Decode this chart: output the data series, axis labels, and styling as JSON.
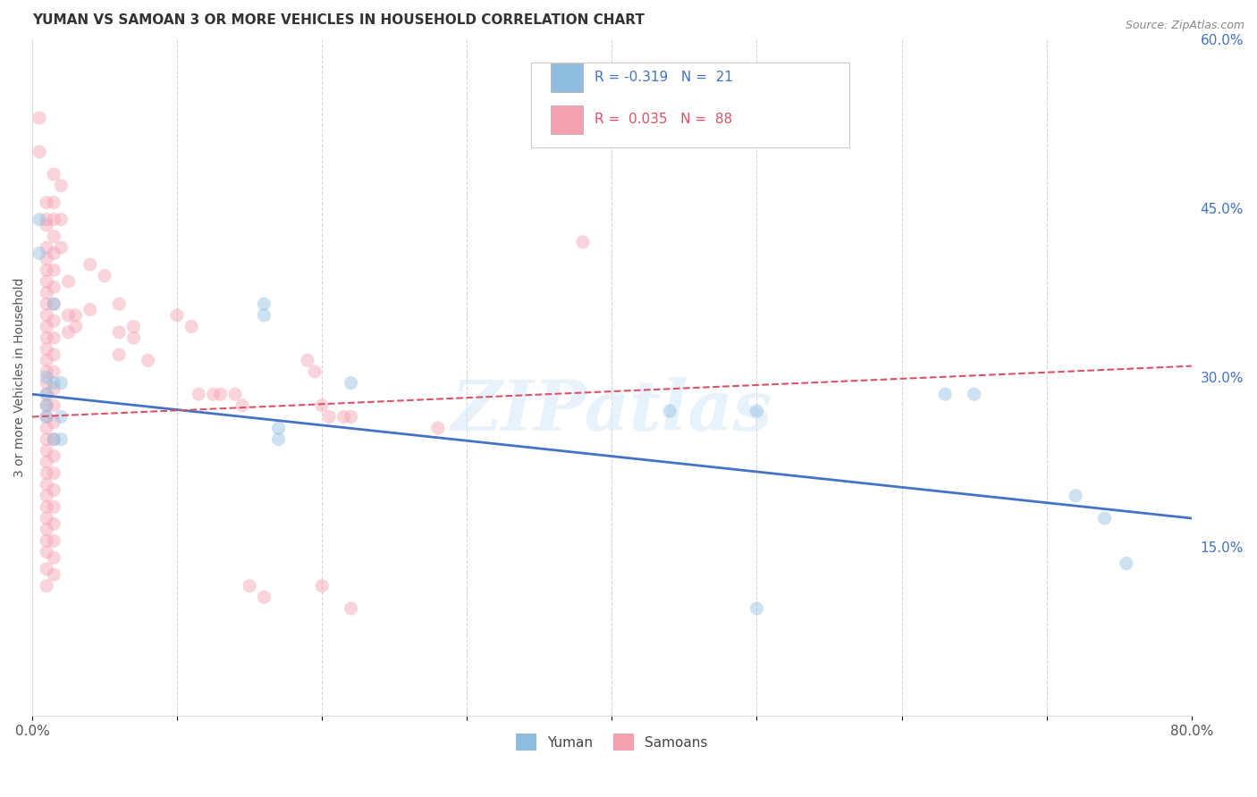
{
  "title": "YUMAN VS SAMOAN 3 OR MORE VEHICLES IN HOUSEHOLD CORRELATION CHART",
  "source": "Source: ZipAtlas.com",
  "ylabel": "3 or more Vehicles in Household",
  "xlim": [
    0.0,
    0.8
  ],
  "ylim": [
    0.0,
    0.6
  ],
  "xticks": [
    0.0,
    0.1,
    0.2,
    0.3,
    0.4,
    0.5,
    0.6,
    0.7,
    0.8
  ],
  "xticklabels": [
    "0.0%",
    "",
    "",
    "",
    "",
    "",
    "",
    "",
    "80.0%"
  ],
  "yticks_right": [
    0.15,
    0.3,
    0.45,
    0.6
  ],
  "ytick_right_labels": [
    "15.0%",
    "30.0%",
    "45.0%",
    "60.0%"
  ],
  "watermark": "ZIPatlas",
  "yuman_scatter": [
    [
      0.005,
      0.44
    ],
    [
      0.005,
      0.41
    ],
    [
      0.01,
      0.3
    ],
    [
      0.01,
      0.285
    ],
    [
      0.01,
      0.275
    ],
    [
      0.01,
      0.265
    ],
    [
      0.015,
      0.365
    ],
    [
      0.015,
      0.295
    ],
    [
      0.015,
      0.245
    ],
    [
      0.02,
      0.295
    ],
    [
      0.02,
      0.265
    ],
    [
      0.02,
      0.245
    ],
    [
      0.16,
      0.365
    ],
    [
      0.16,
      0.355
    ],
    [
      0.17,
      0.255
    ],
    [
      0.17,
      0.245
    ],
    [
      0.22,
      0.295
    ],
    [
      0.44,
      0.27
    ],
    [
      0.5,
      0.27
    ],
    [
      0.63,
      0.285
    ],
    [
      0.65,
      0.285
    ],
    [
      0.72,
      0.195
    ],
    [
      0.74,
      0.175
    ],
    [
      0.755,
      0.135
    ],
    [
      0.5,
      0.095
    ]
  ],
  "samoan_scatter": [
    [
      0.005,
      0.53
    ],
    [
      0.005,
      0.5
    ],
    [
      0.01,
      0.455
    ],
    [
      0.01,
      0.44
    ],
    [
      0.01,
      0.435
    ],
    [
      0.01,
      0.415
    ],
    [
      0.01,
      0.405
    ],
    [
      0.01,
      0.395
    ],
    [
      0.01,
      0.385
    ],
    [
      0.01,
      0.375
    ],
    [
      0.01,
      0.365
    ],
    [
      0.01,
      0.355
    ],
    [
      0.01,
      0.345
    ],
    [
      0.01,
      0.335
    ],
    [
      0.01,
      0.325
    ],
    [
      0.01,
      0.315
    ],
    [
      0.01,
      0.305
    ],
    [
      0.01,
      0.295
    ],
    [
      0.01,
      0.285
    ],
    [
      0.01,
      0.275
    ],
    [
      0.01,
      0.265
    ],
    [
      0.01,
      0.255
    ],
    [
      0.01,
      0.245
    ],
    [
      0.01,
      0.235
    ],
    [
      0.01,
      0.225
    ],
    [
      0.01,
      0.215
    ],
    [
      0.01,
      0.205
    ],
    [
      0.01,
      0.195
    ],
    [
      0.01,
      0.185
    ],
    [
      0.01,
      0.175
    ],
    [
      0.01,
      0.165
    ],
    [
      0.01,
      0.155
    ],
    [
      0.01,
      0.145
    ],
    [
      0.01,
      0.13
    ],
    [
      0.01,
      0.115
    ],
    [
      0.015,
      0.48
    ],
    [
      0.015,
      0.455
    ],
    [
      0.015,
      0.44
    ],
    [
      0.015,
      0.425
    ],
    [
      0.015,
      0.41
    ],
    [
      0.015,
      0.395
    ],
    [
      0.015,
      0.38
    ],
    [
      0.015,
      0.365
    ],
    [
      0.015,
      0.35
    ],
    [
      0.015,
      0.335
    ],
    [
      0.015,
      0.32
    ],
    [
      0.015,
      0.305
    ],
    [
      0.015,
      0.29
    ],
    [
      0.015,
      0.275
    ],
    [
      0.015,
      0.26
    ],
    [
      0.015,
      0.245
    ],
    [
      0.015,
      0.23
    ],
    [
      0.015,
      0.215
    ],
    [
      0.015,
      0.2
    ],
    [
      0.015,
      0.185
    ],
    [
      0.015,
      0.17
    ],
    [
      0.015,
      0.155
    ],
    [
      0.015,
      0.14
    ],
    [
      0.015,
      0.125
    ],
    [
      0.02,
      0.47
    ],
    [
      0.02,
      0.44
    ],
    [
      0.02,
      0.415
    ],
    [
      0.025,
      0.385
    ],
    [
      0.025,
      0.355
    ],
    [
      0.025,
      0.34
    ],
    [
      0.03,
      0.355
    ],
    [
      0.03,
      0.345
    ],
    [
      0.04,
      0.4
    ],
    [
      0.04,
      0.36
    ],
    [
      0.05,
      0.39
    ],
    [
      0.06,
      0.365
    ],
    [
      0.06,
      0.34
    ],
    [
      0.06,
      0.32
    ],
    [
      0.07,
      0.345
    ],
    [
      0.07,
      0.335
    ],
    [
      0.08,
      0.315
    ],
    [
      0.1,
      0.355
    ],
    [
      0.11,
      0.345
    ],
    [
      0.115,
      0.285
    ],
    [
      0.125,
      0.285
    ],
    [
      0.13,
      0.285
    ],
    [
      0.14,
      0.285
    ],
    [
      0.145,
      0.275
    ],
    [
      0.19,
      0.315
    ],
    [
      0.195,
      0.305
    ],
    [
      0.2,
      0.275
    ],
    [
      0.205,
      0.265
    ],
    [
      0.215,
      0.265
    ],
    [
      0.22,
      0.265
    ],
    [
      0.28,
      0.255
    ],
    [
      0.15,
      0.115
    ],
    [
      0.16,
      0.105
    ],
    [
      0.2,
      0.115
    ],
    [
      0.22,
      0.095
    ],
    [
      0.38,
      0.42
    ]
  ],
  "yuman_color": "#8fbde0",
  "samoan_color": "#f4a0b0",
  "yuman_line_color": "#4472c4",
  "samoan_line_color": "#d9536a",
  "grid_color": "#cccccc",
  "background_color": "#ffffff",
  "scatter_size": 120,
  "scatter_alpha": 0.45,
  "title_fontsize": 11,
  "label_fontsize": 10,
  "tick_fontsize": 11,
  "yuman_trend": [
    0.0,
    0.8,
    0.285,
    0.175
  ],
  "samoan_trend": [
    0.0,
    0.8,
    0.265,
    0.31
  ]
}
